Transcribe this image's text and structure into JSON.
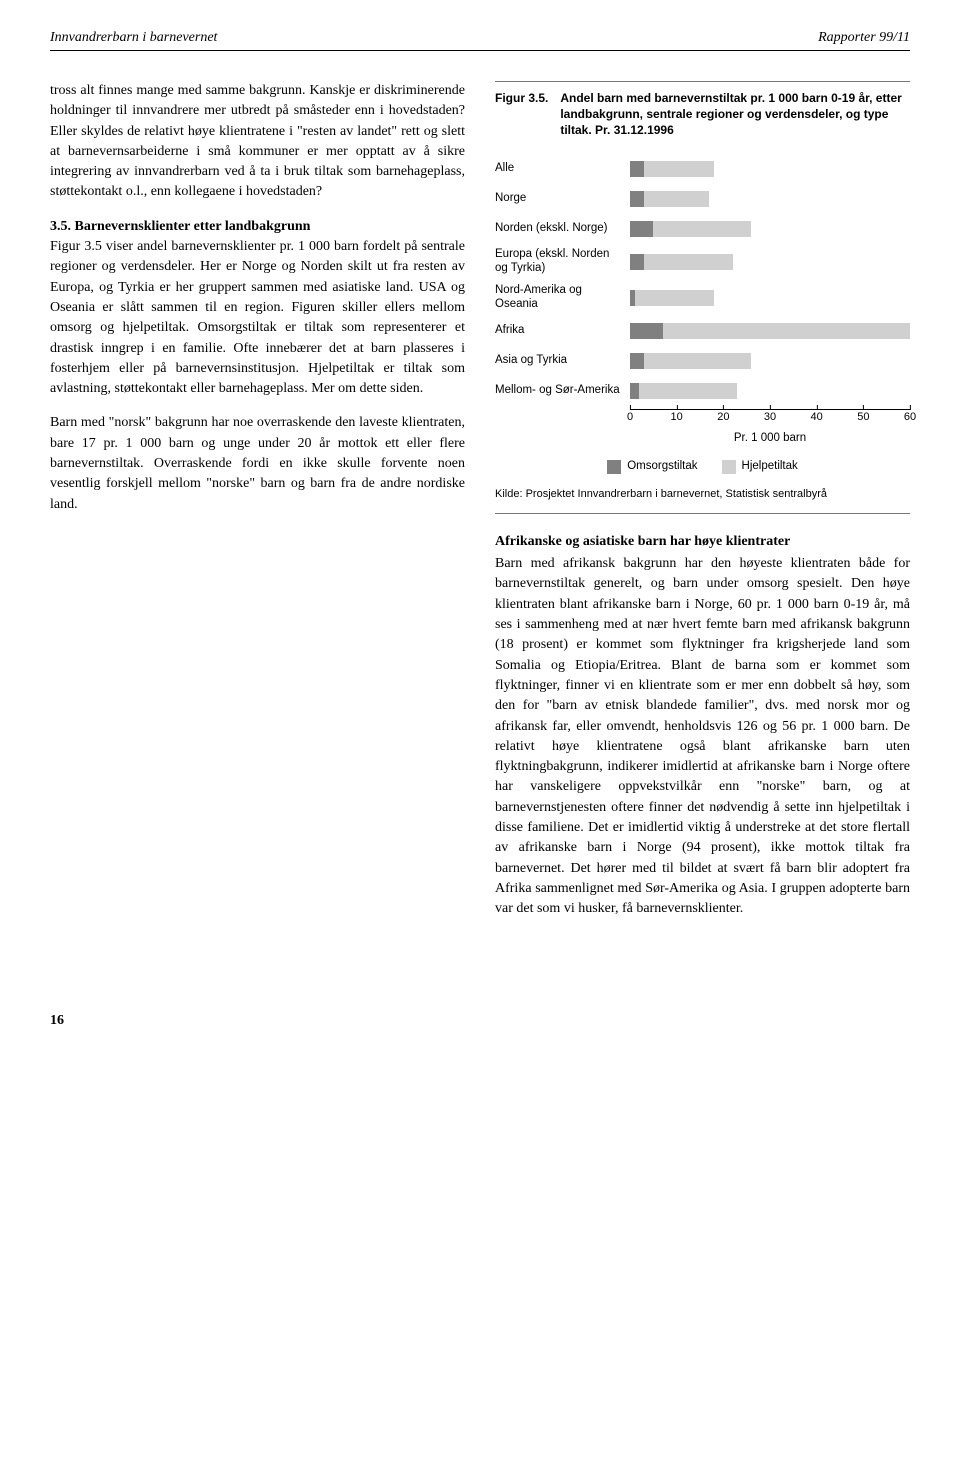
{
  "header": {
    "left": "Innvandrerbarn i barnevernet",
    "right": "Rapporter 99/11"
  },
  "left_column": {
    "p1": "tross alt finnes mange med samme bakgrunn. Kanskje er diskriminerende holdninger til innvandrere mer utbredt på småsteder enn i hovedstaden? Eller skyldes de relativt høye klientratene i \"resten av landet\" rett og slett at barnevernsarbeiderne i små kommuner er mer opptatt av å sikre integrering av innvandrerbarn ved å ta i bruk tiltak som barnehageplass, støttekontakt o.l., enn kollegaene i hovedstaden?",
    "section_title": "3.5. Barnevernsklienter etter landbakgrunn",
    "p2": "Figur 3.5 viser andel barnevernsklienter pr. 1 000 barn fordelt på sentrale regioner og verdensdeler. Her er Norge og Norden skilt ut fra resten av Europa, og Tyrkia er her gruppert sammen med asiatiske land. USA og Oseania er slått sammen til en region. Figuren skiller ellers mellom omsorg og hjelpetiltak. Omsorgstiltak er tiltak som representerer et drastisk inngrep i en familie. Ofte innebærer det at barn plasseres i fosterhjem eller på barnevernsinstitusjon. Hjelpetiltak er tiltak som avlastning, støttekontakt eller barnehageplass. Mer om dette siden.",
    "p3": "Barn med \"norsk\" bakgrunn har noe overraskende den laveste klientraten, bare 17 pr. 1 000 barn og unge under 20 år mottok ett eller flere barnevernstiltak. Overraskende fordi en ikke skulle forvente noen vesentlig forskjell mellom \"norske\" barn og barn fra de andre nordiske land."
  },
  "page_number": "16",
  "figure": {
    "number": "Figur 3.5.",
    "caption": "Andel barn med barnevernstiltak pr. 1 000 barn 0-19 år, etter landbakgrunn, sentrale regioner og verdensdeler, og type tiltak. Pr. 31.12.1996",
    "xmax": 60,
    "xtick_step": 10,
    "axis_label": "Pr. 1 000 barn",
    "colors": {
      "seg1": "#808080",
      "seg2": "#d0d0d0"
    },
    "legend": {
      "s1": "Omsorgstiltak",
      "s2": "Hjelpetiltak"
    },
    "categories": [
      {
        "label": "Alle",
        "omsorg": 3,
        "hjelp": 15
      },
      {
        "label": "Norge",
        "omsorg": 3,
        "hjelp": 14
      },
      {
        "label": "Norden (ekskl. Norge)",
        "omsorg": 5,
        "hjelp": 21
      },
      {
        "label": "Europa (ekskl. Norden og Tyrkia)",
        "omsorg": 3,
        "hjelp": 19
      },
      {
        "label": "Nord-Amerika og Oseania",
        "omsorg": 1,
        "hjelp": 17
      },
      {
        "label": "Afrika",
        "omsorg": 7,
        "hjelp": 53
      },
      {
        "label": "Asia og Tyrkia",
        "omsorg": 3,
        "hjelp": 23
      },
      {
        "label": "Mellom- og Sør-Amerika",
        "omsorg": 2,
        "hjelp": 21
      }
    ],
    "source": "Kilde: Prosjektet Innvandrerbarn i barnevernet, Statistisk sentralbyrå"
  },
  "right_column": {
    "subhead": "Afrikanske og asiatiske barn har høye klientrater",
    "p1": "Barn med afrikansk bakgrunn har den høyeste klientraten både for barnevernstiltak generelt, og barn under omsorg spesielt. Den høye klientraten blant afrikanske barn i Norge, 60 pr. 1 000 barn 0-19 år, må ses i sammenheng med at nær hvert femte barn med afrikansk bakgrunn (18 prosent) er kommet som flyktninger fra krigsherjede land som Somalia og Etiopia/Eritrea. Blant de barna som er kommet som flyktninger, finner vi en klientrate som er mer enn dobbelt så høy, som den for \"barn av etnisk blandede familier\", dvs. med norsk mor og afrikansk far, eller omvendt, henholdsvis 126 og 56 pr. 1 000 barn. De relativt høye klientratene også blant afrikanske barn uten flyktningbakgrunn, indikerer imidlertid at afrikanske barn i Norge oftere har vanskeligere oppvekstvilkår enn \"norske\" barn, og at barnevernstjenesten oftere finner det nødvendig å sette inn hjelpetiltak i disse familiene. Det er imidlertid viktig å understreke at det store flertall av afrikanske barn i Norge (94 prosent), ikke mottok tiltak fra barnevernet. Det hører med til bildet at svært få barn blir adoptert fra Afrika sammenlignet med Sør-Amerika og Asia. I gruppen adopterte barn var det som vi husker, få barnevernsklienter."
  }
}
